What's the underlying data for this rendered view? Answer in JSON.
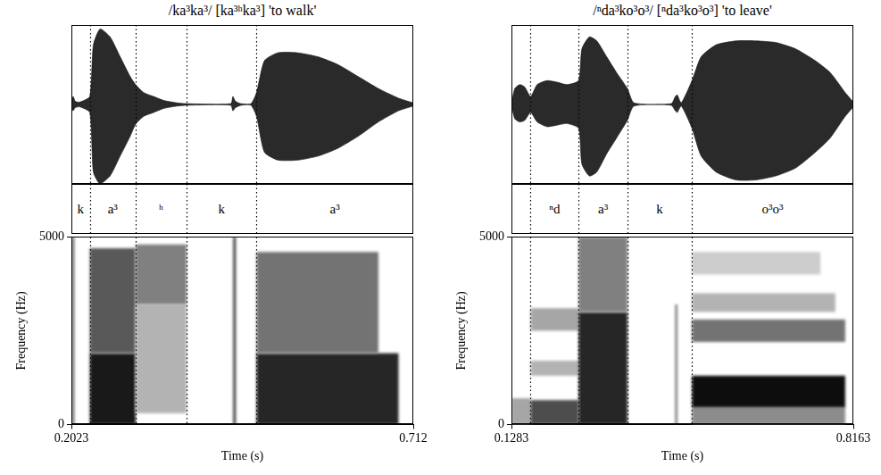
{
  "chart_data": [
    {
      "type": "spectrogram",
      "title": "/ka³ka³/ [ka³ʰka³] 'to walk'",
      "x_label": "Time (s)",
      "y_label": "Frequency (Hz)",
      "xlim": [
        0.2023,
        0.712
      ],
      "xticks": [
        0.2023,
        0.712
      ],
      "ylim": [
        0,
        5000
      ],
      "yticks": [
        0,
        5000
      ],
      "segments": [
        {
          "label": "k",
          "start": 0.2023,
          "end": 0.2297
        },
        {
          "label": "a³",
          "start": 0.2297,
          "end": 0.298
        },
        {
          "label": "ʰ",
          "start": 0.298,
          "end": 0.3738
        },
        {
          "label": "k",
          "start": 0.3738,
          "end": 0.4783
        },
        {
          "label": "a³",
          "start": 0.4783,
          "end": 0.712
        }
      ],
      "waveform": {
        "ylim": [
          -1,
          1
        ],
        "x": [
          0.2023,
          0.205,
          0.208,
          0.215,
          0.2297,
          0.235,
          0.245,
          0.26,
          0.275,
          0.29,
          0.298,
          0.31,
          0.325,
          0.34,
          0.36,
          0.374,
          0.44,
          0.443,
          0.447,
          0.455,
          0.47,
          0.4783,
          0.49,
          0.51,
          0.54,
          0.57,
          0.6,
          0.63,
          0.66,
          0.69,
          0.712
        ],
        "upper": [
          0.03,
          0.1,
          0.04,
          0.03,
          0.1,
          0.75,
          0.95,
          0.85,
          0.6,
          0.35,
          0.25,
          0.15,
          0.1,
          0.05,
          0.02,
          0.01,
          0.01,
          0.1,
          0.04,
          0.01,
          0.01,
          0.15,
          0.55,
          0.65,
          0.65,
          0.6,
          0.5,
          0.35,
          0.2,
          0.08,
          0.02
        ],
        "lower": [
          -0.03,
          -0.08,
          -0.04,
          -0.03,
          -0.1,
          -0.85,
          -1,
          -0.9,
          -0.65,
          -0.4,
          -0.25,
          -0.15,
          -0.1,
          -0.05,
          -0.02,
          -0.01,
          -0.01,
          -0.08,
          -0.04,
          -0.01,
          -0.01,
          -0.15,
          -0.6,
          -0.7,
          -0.7,
          -0.65,
          -0.55,
          -0.4,
          -0.22,
          -0.08,
          -0.02
        ]
      },
      "bands": [
        {
          "x": [
            0.2035,
            0.2065
          ],
          "y": [
            0,
            5000
          ],
          "intensity": 0.7
        },
        {
          "x": [
            0.2297,
            0.298
          ],
          "y": [
            0,
            1900
          ],
          "intensity": 0.9
        },
        {
          "x": [
            0.2297,
            0.298
          ],
          "y": [
            1900,
            4700
          ],
          "intensity": 0.65
        },
        {
          "x": [
            0.298,
            0.374
          ],
          "y": [
            300,
            3200
          ],
          "intensity": 0.3
        },
        {
          "x": [
            0.298,
            0.374
          ],
          "y": [
            3200,
            4800
          ],
          "intensity": 0.5
        },
        {
          "x": [
            0.4435,
            0.4475
          ],
          "y": [
            0,
            5000
          ],
          "intensity": 0.75
        },
        {
          "x": [
            0.4783,
            0.69
          ],
          "y": [
            0,
            1900
          ],
          "intensity": 0.85
        },
        {
          "x": [
            0.4783,
            0.66
          ],
          "y": [
            1900,
            4600
          ],
          "intensity": 0.55
        }
      ]
    },
    {
      "type": "spectrogram",
      "title": "/ⁿda³ko³o³/ [ⁿda³ko³o³] 'to leave'",
      "x_label": "Time (s)",
      "y_label": "Frequency (Hz)",
      "xlim": [
        0.1283,
        0.8163
      ],
      "xticks": [
        0.1283,
        0.8163
      ],
      "ylim": [
        0,
        5000
      ],
      "yticks": [
        0,
        5000
      ],
      "segments": [
        {
          "label": "ⁿd",
          "start": 0.1669,
          "end": 0.2634
        },
        {
          "label": "a³",
          "start": 0.2634,
          "end": 0.3617
        },
        {
          "label": "k",
          "start": 0.3617,
          "end": 0.4916
        },
        {
          "label": "o³o³",
          "start": 0.4916,
          "end": 0.8163
        }
      ],
      "waveform": {
        "ylim": [
          -1,
          1
        ],
        "x": [
          0.1283,
          0.135,
          0.145,
          0.155,
          0.1669,
          0.18,
          0.2,
          0.22,
          0.24,
          0.2634,
          0.27,
          0.285,
          0.3,
          0.32,
          0.34,
          0.3617,
          0.375,
          0.45,
          0.458,
          0.462,
          0.47,
          0.4916,
          0.51,
          0.54,
          0.58,
          0.62,
          0.66,
          0.7,
          0.74,
          0.77,
          0.8,
          0.8163
        ],
        "upper": [
          0.01,
          0.2,
          0.25,
          0.22,
          0.1,
          0.25,
          0.3,
          0.28,
          0.25,
          0.3,
          0.7,
          0.85,
          0.8,
          0.6,
          0.4,
          0.2,
          0.02,
          0.01,
          0.1,
          0.12,
          0.02,
          0.3,
          0.6,
          0.75,
          0.8,
          0.8,
          0.78,
          0.7,
          0.55,
          0.4,
          0.15,
          0.03
        ],
        "lower": [
          -0.01,
          -0.18,
          -0.22,
          -0.2,
          -0.1,
          -0.22,
          -0.28,
          -0.26,
          -0.24,
          -0.3,
          -0.75,
          -0.9,
          -0.85,
          -0.62,
          -0.42,
          -0.2,
          -0.02,
          -0.01,
          -0.08,
          -0.1,
          -0.02,
          -0.3,
          -0.65,
          -0.85,
          -0.95,
          -0.95,
          -0.9,
          -0.8,
          -0.6,
          -0.42,
          -0.15,
          -0.03
        ]
      },
      "bands": [
        {
          "x": [
            0.1283,
            0.1669
          ],
          "y": [
            0,
            700
          ],
          "intensity": 0.35
        },
        {
          "x": [
            0.1669,
            0.2634
          ],
          "y": [
            0,
            650
          ],
          "intensity": 0.7
        },
        {
          "x": [
            0.1669,
            0.2634
          ],
          "y": [
            1300,
            1700
          ],
          "intensity": 0.3
        },
        {
          "x": [
            0.1669,
            0.2634
          ],
          "y": [
            2500,
            3100
          ],
          "intensity": 0.35
        },
        {
          "x": [
            0.2634,
            0.3617
          ],
          "y": [
            0,
            3000
          ],
          "intensity": 0.85
        },
        {
          "x": [
            0.2634,
            0.3617
          ],
          "y": [
            3000,
            5000
          ],
          "intensity": 0.5
        },
        {
          "x": [
            0.458,
            0.462
          ],
          "y": [
            0,
            3200
          ],
          "intensity": 0.6
        },
        {
          "x": [
            0.4916,
            0.8
          ],
          "y": [
            0,
            450
          ],
          "intensity": 0.45
        },
        {
          "x": [
            0.4916,
            0.8
          ],
          "y": [
            450,
            1300
          ],
          "intensity": 0.95
        },
        {
          "x": [
            0.4916,
            0.8
          ],
          "y": [
            2200,
            2800
          ],
          "intensity": 0.55
        },
        {
          "x": [
            0.4916,
            0.78
          ],
          "y": [
            3000,
            3500
          ],
          "intensity": 0.3
        },
        {
          "x": [
            0.4916,
            0.75
          ],
          "y": [
            4000,
            4600
          ],
          "intensity": 0.2
        }
      ]
    }
  ]
}
